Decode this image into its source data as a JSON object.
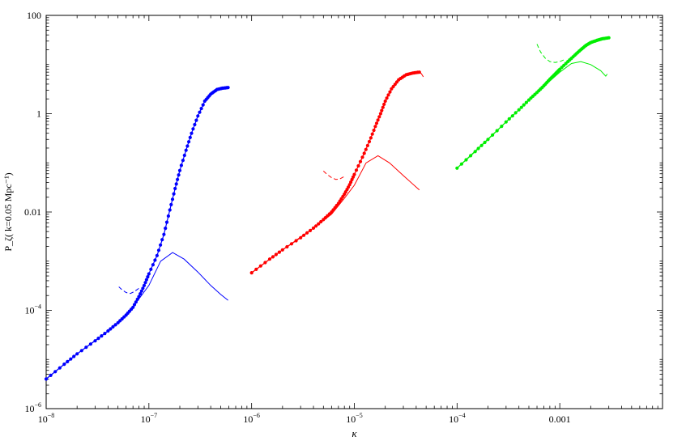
{
  "chart_data": {
    "type": "scatter",
    "xscale": "log",
    "yscale": "log",
    "xlim": [
      1e-08,
      0.01
    ],
    "ylim": [
      1e-06,
      100
    ],
    "xlabel": "κ",
    "ylabel": "P_ζ( k=0.05  Mpc⁻¹)",
    "grid": false,
    "x_ticks": [
      {
        "value": 1e-08,
        "label": "10",
        "sup": "−8"
      },
      {
        "value": 1e-07,
        "label": "10",
        "sup": "−7"
      },
      {
        "value": 1e-06,
        "label": "10",
        "sup": "−6"
      },
      {
        "value": 1e-05,
        "label": "10",
        "sup": "−5"
      },
      {
        "value": 0.0001,
        "label": "10",
        "sup": "−4"
      },
      {
        "value": 0.001,
        "label": "0.001",
        "sup": ""
      }
    ],
    "y_ticks": [
      {
        "value": 1e-06,
        "label": "10",
        "sup": "−6"
      },
      {
        "value": 0.0001,
        "label": "10",
        "sup": "−4"
      },
      {
        "value": 0.01,
        "label": "0.01",
        "sup": ""
      },
      {
        "value": 1,
        "label": "1",
        "sup": ""
      },
      {
        "value": 100,
        "label": "100",
        "sup": ""
      }
    ],
    "series": [
      {
        "color": "#0000ff",
        "dots": [
          [
            1e-08,
            4e-06
          ],
          [
            1.5e-08,
            8e-06
          ],
          [
            2e-08,
            1.3e-05
          ],
          [
            3e-08,
            2.4e-05
          ],
          [
            4e-08,
            3.8e-05
          ],
          [
            5e-08,
            5.6e-05
          ],
          [
            6e-08,
            8e-05
          ],
          [
            7e-08,
            0.000115
          ],
          [
            8e-08,
            0.00019
          ],
          [
            9e-08,
            0.00032
          ],
          [
            1e-07,
            0.00055
          ],
          [
            1.2e-07,
            0.0013
          ],
          [
            1.4e-07,
            0.0035
          ],
          [
            1.6e-07,
            0.011
          ],
          [
            1.8e-07,
            0.03
          ],
          [
            2e-07,
            0.07
          ],
          [
            2.3e-07,
            0.18
          ],
          [
            2.6e-07,
            0.4
          ],
          [
            3e-07,
            0.9
          ],
          [
            3.5e-07,
            1.8
          ],
          [
            4e-07,
            2.5
          ],
          [
            4.6e-07,
            3.1
          ],
          [
            5.2e-07,
            3.3
          ],
          [
            5.9e-07,
            3.4
          ]
        ],
        "solid": [
          [
            1e-08,
            4e-06
          ],
          [
            2e-08,
            1.3e-05
          ],
          [
            4e-08,
            3.8e-05
          ],
          [
            6e-08,
            8e-05
          ],
          [
            8e-08,
            0.00017
          ],
          [
            1e-07,
            0.00032
          ],
          [
            1.3e-07,
            0.001
          ],
          [
            1.7e-07,
            0.0015
          ],
          [
            2.2e-07,
            0.0011
          ],
          [
            3e-07,
            0.0006
          ],
          [
            4e-07,
            0.00032
          ],
          [
            5e-07,
            0.00021
          ],
          [
            5.9e-07,
            0.00016
          ]
        ],
        "dashed": [
          [
            5.1e-08,
            0.0003
          ],
          [
            5.5e-08,
            0.00026
          ],
          [
            6e-08,
            0.00023
          ],
          [
            6.6e-08,
            0.00022
          ],
          [
            7.2e-08,
            0.00024
          ],
          [
            8e-08,
            0.00028
          ]
        ]
      },
      {
        "color": "#ff0000",
        "dots": [
          [
            1e-06,
            0.00058
          ],
          [
            1.5e-06,
            0.0011
          ],
          [
            2e-06,
            0.0017
          ],
          [
            3e-06,
            0.003
          ],
          [
            4e-06,
            0.0047
          ],
          [
            5e-06,
            0.007
          ],
          [
            6e-06,
            0.01
          ],
          [
            7e-06,
            0.015
          ],
          [
            8e-06,
            0.023
          ],
          [
            9e-06,
            0.036
          ],
          [
            1e-05,
            0.058
          ],
          [
            1.2e-05,
            0.13
          ],
          [
            1.4e-05,
            0.27
          ],
          [
            1.6e-05,
            0.55
          ],
          [
            1.8e-05,
            1
          ],
          [
            2e-05,
            1.8
          ],
          [
            2.3e-05,
            3.2
          ],
          [
            2.7e-05,
            4.9
          ],
          [
            3.2e-05,
            6.2
          ],
          [
            3.7e-05,
            6.7
          ],
          [
            4.3e-05,
            7
          ]
        ],
        "solid": [
          [
            1e-06,
            0.00058
          ],
          [
            2e-06,
            0.0017
          ],
          [
            4e-06,
            0.0047
          ],
          [
            6e-06,
            0.009
          ],
          [
            8e-06,
            0.019
          ],
          [
            1e-05,
            0.035
          ],
          [
            1.3e-05,
            0.1
          ],
          [
            1.7e-05,
            0.14
          ],
          [
            2.2e-05,
            0.1
          ],
          [
            3e-05,
            0.055
          ],
          [
            4.3e-05,
            0.028
          ]
        ],
        "dashed": [
          [
            5e-06,
            0.068
          ],
          [
            5.5e-06,
            0.057
          ],
          [
            6e-06,
            0.05
          ],
          [
            6.6e-06,
            0.046
          ],
          [
            7.2e-06,
            0.047
          ],
          [
            8e-06,
            0.053
          ]
        ],
        "tail": [
          [
            4.3e-05,
            7
          ],
          [
            4.5e-05,
            6.5
          ],
          [
            4.7e-05,
            5.6
          ]
        ]
      },
      {
        "color": "#00ee00",
        "dots": [
          [
            0.0001,
            0.078
          ],
          [
            0.00015,
            0.17
          ],
          [
            0.0002,
            0.3
          ],
          [
            0.0003,
            0.68
          ],
          [
            0.0004,
            1.2
          ],
          [
            0.0005,
            1.9
          ],
          [
            0.0006,
            2.7
          ],
          [
            0.0007,
            3.7
          ],
          [
            0.0008,
            5
          ],
          [
            0.0009,
            6.4
          ],
          [
            0.001,
            8
          ],
          [
            0.0012,
            11.5
          ],
          [
            0.0014,
            15.5
          ],
          [
            0.0016,
            20
          ],
          [
            0.0018,
            24.5
          ],
          [
            0.002,
            28
          ],
          [
            0.0023,
            31
          ],
          [
            0.0026,
            33.5
          ],
          [
            0.003,
            35
          ]
        ],
        "solid": [
          [
            0.0001,
            0.078
          ],
          [
            0.0003,
            0.68
          ],
          [
            0.0006,
            2.7
          ],
          [
            0.001,
            7
          ],
          [
            0.0013,
            10.5
          ],
          [
            0.0016,
            11.5
          ],
          [
            0.002,
            10
          ],
          [
            0.0025,
            7.5
          ],
          [
            0.0028,
            5.8
          ],
          [
            0.0029,
            6.4
          ]
        ],
        "dashed": [
          [
            0.0006,
            26
          ],
          [
            0.00065,
            18
          ],
          [
            0.00072,
            13.5
          ],
          [
            0.0008,
            11.5
          ],
          [
            0.0009,
            11
          ],
          [
            0.001,
            11.5
          ],
          [
            0.0011,
            12.5
          ]
        ]
      }
    ]
  }
}
